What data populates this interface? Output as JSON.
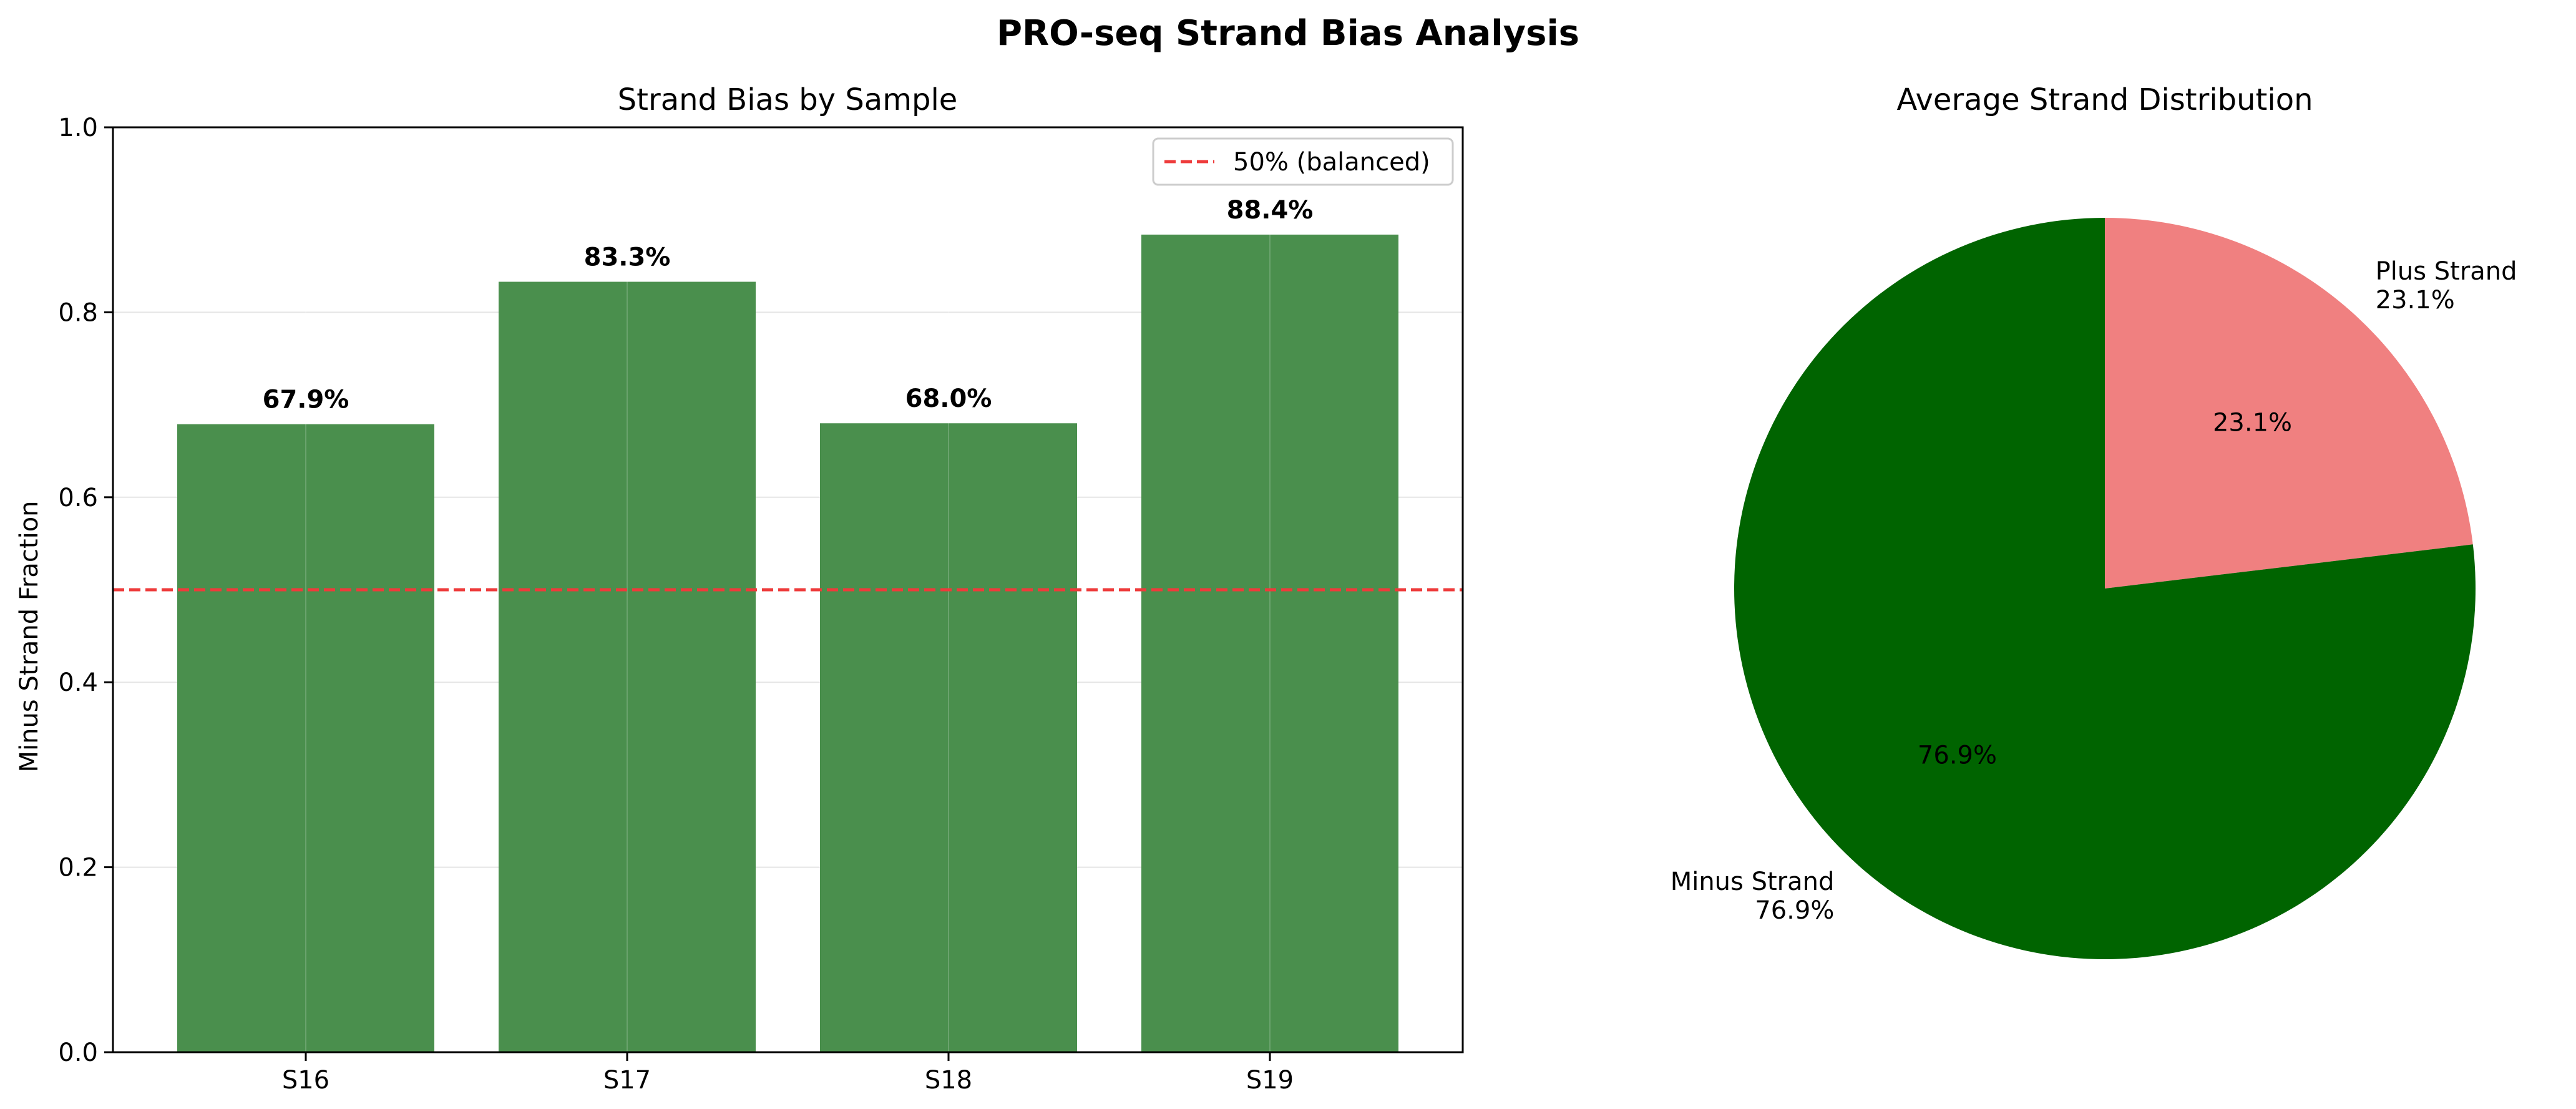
{
  "figure": {
    "title": "PRO-seq Strand Bias Analysis"
  },
  "chart_data": [
    {
      "type": "bar",
      "title": "Strand Bias by Sample",
      "xlabel": "",
      "ylabel": "Minus Strand Fraction",
      "categories": [
        "S16",
        "S17",
        "S18",
        "S19"
      ],
      "values": [
        0.679,
        0.833,
        0.68,
        0.884
      ],
      "value_labels": [
        "67.9%",
        "83.3%",
        "68.0%",
        "88.4%"
      ],
      "ylim": [
        0,
        1.0
      ],
      "yticks": [
        0.0,
        0.2,
        0.4,
        0.6,
        0.8,
        1.0
      ],
      "ytick_labels": [
        "0.0",
        "0.2",
        "0.4",
        "0.6",
        "0.8",
        "1.0"
      ],
      "bar_color": "#4a8f4d",
      "grid": true,
      "reference_line": {
        "value": 0.5,
        "label": "50% (balanced)",
        "color": "#ee3b3b",
        "style": "dashed"
      },
      "legend": {
        "placement": "top-right"
      }
    },
    {
      "type": "pie",
      "title": "Average Strand Distribution",
      "slices": [
        {
          "label": "Plus Strand",
          "value": 23.1,
          "pct_label": "23.1%",
          "color": "#f08080"
        },
        {
          "label": "Minus Strand",
          "value": 76.9,
          "pct_label": "76.9%",
          "color": "#006400"
        }
      ]
    }
  ]
}
